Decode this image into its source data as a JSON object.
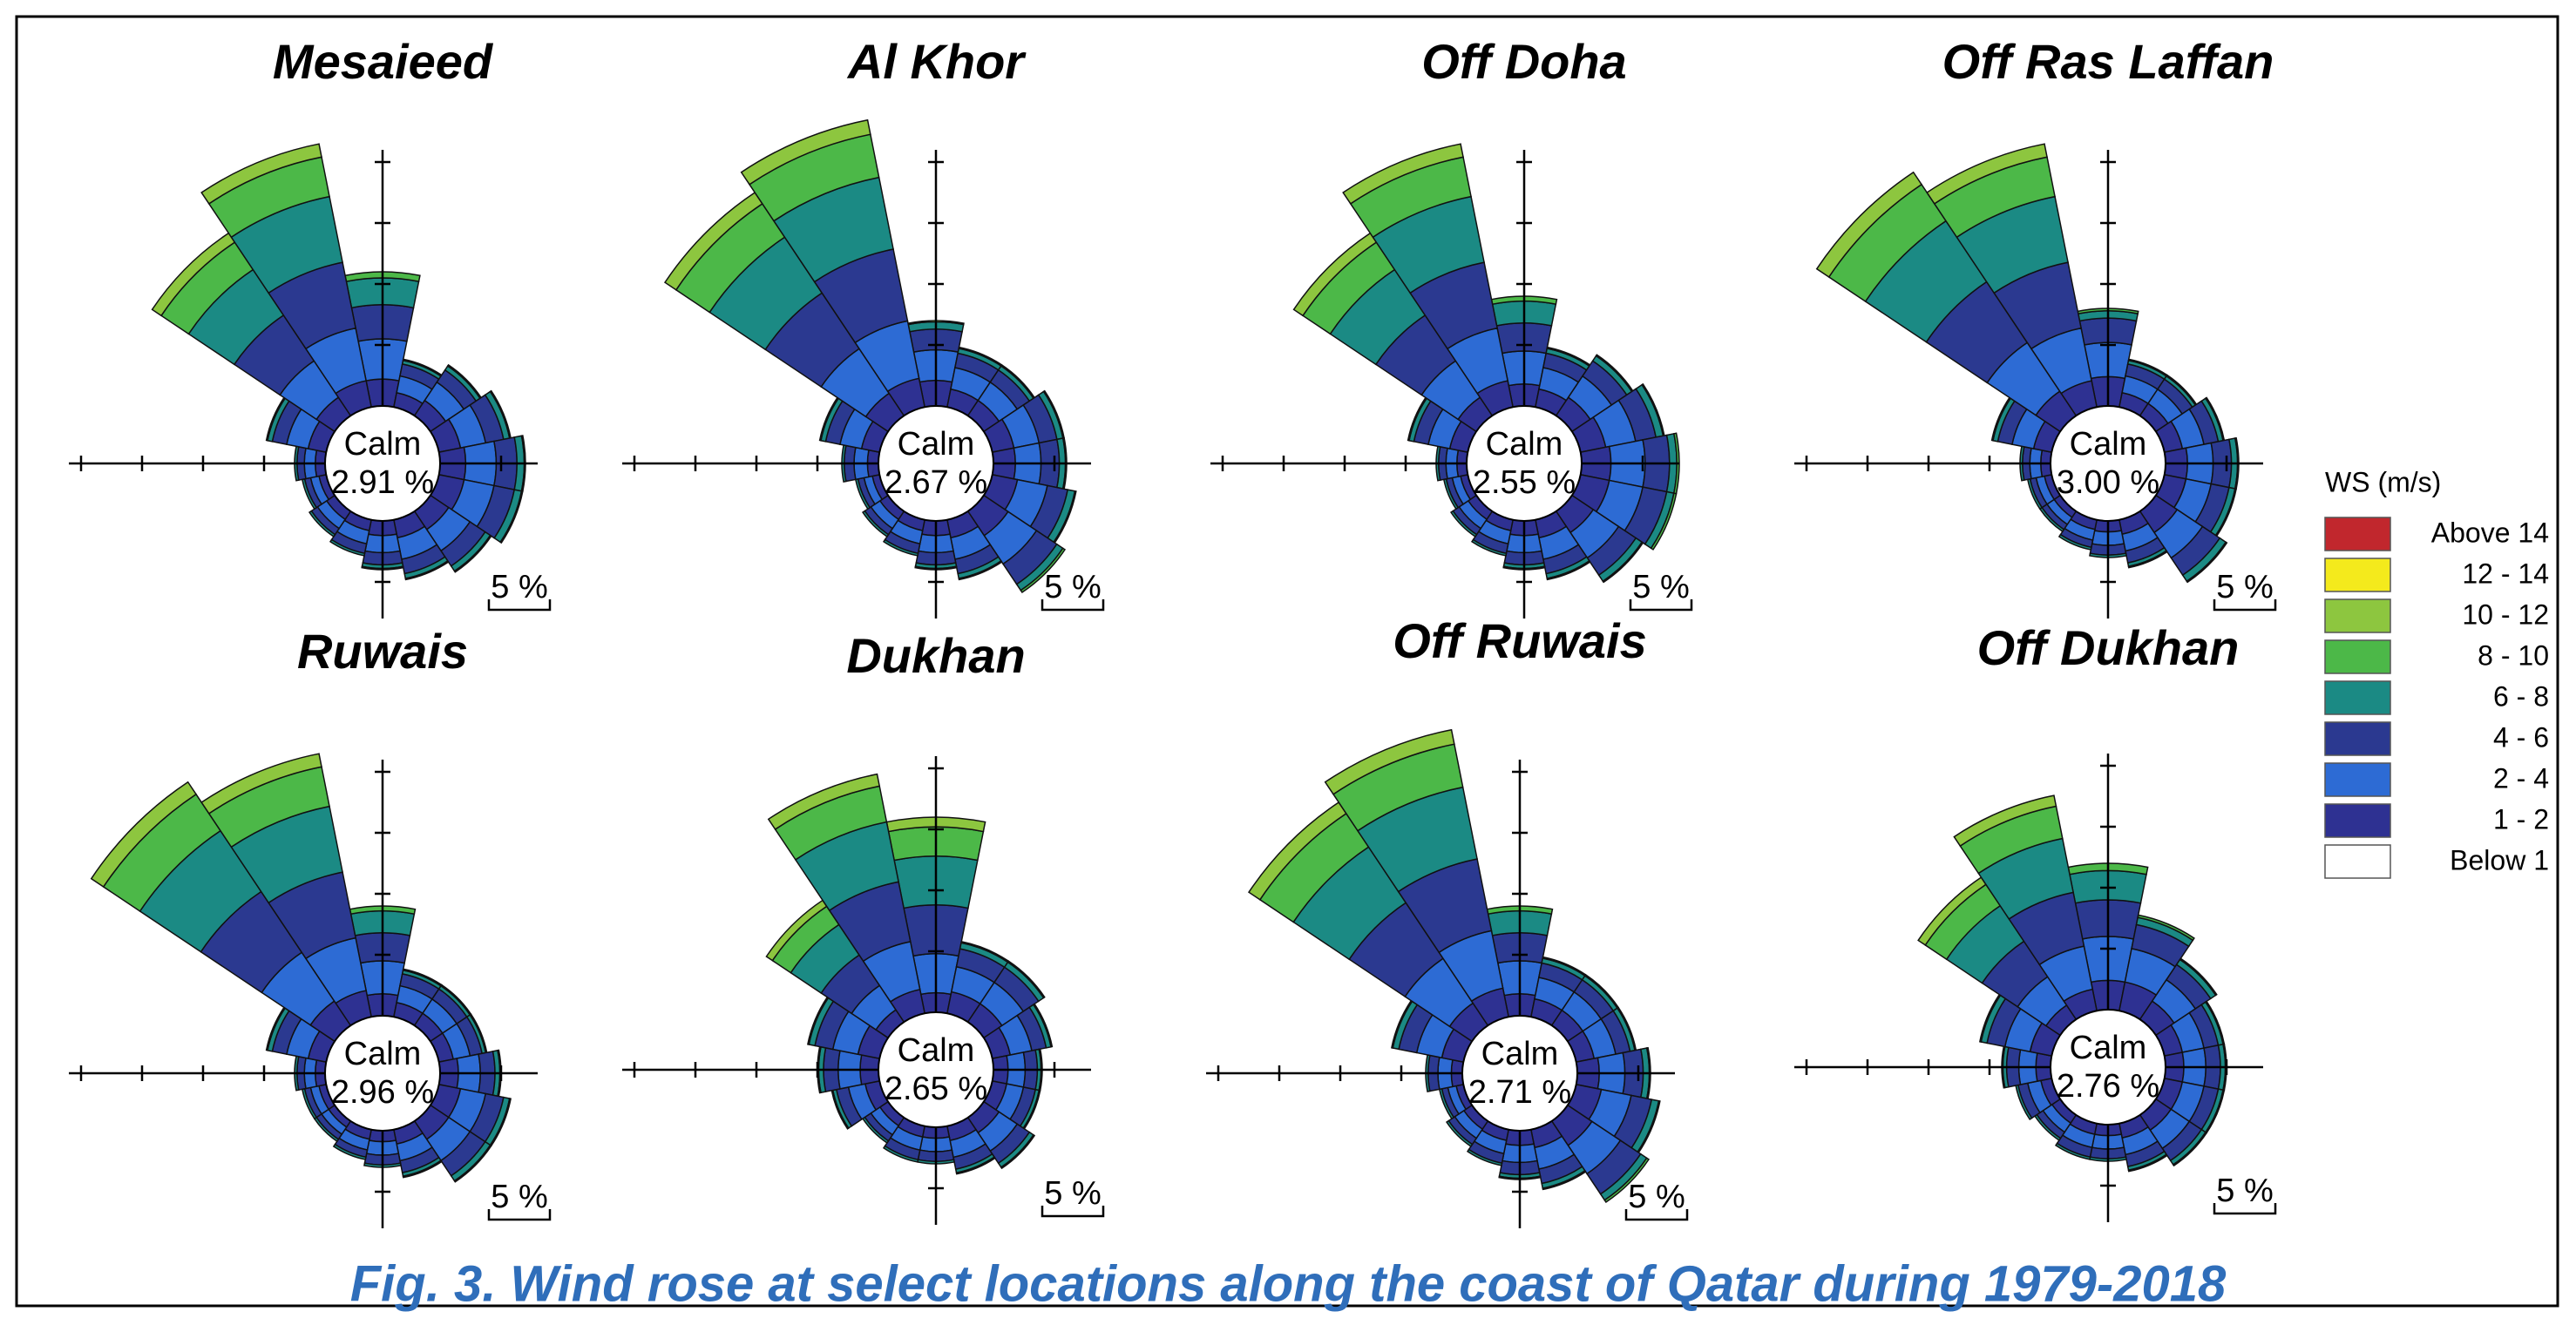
{
  "figure": {
    "caption": "Fig. 3.  Wind rose at select locations along the coast of Qatar during 1979-2018",
    "legend_title": "WS (m/s)",
    "speed_bins": [
      {
        "name": "Above 14",
        "color": "#c1272d"
      },
      {
        "name": "12 - 14",
        "color": "#f4ea1c"
      },
      {
        "name": "10 - 12",
        "color": "#8dc63f"
      },
      {
        "name": "8 - 10",
        "color": "#4cb848"
      },
      {
        "name": "6 - 8",
        "color": "#1b8a84"
      },
      {
        "name": "4 - 6",
        "color": "#2b3990"
      },
      {
        "name": "2 - 4",
        "color": "#2d6bd4"
      },
      {
        "name": "1 - 2",
        "color": "#2e3192"
      },
      {
        "name": "Below 1",
        "color": "#ffffff"
      }
    ]
  },
  "chart_data": [
    {
      "type": "windrose",
      "title": "Mesaieed",
      "calm_text": "Calm",
      "calm": {
        "value": 2.91,
        "label": "2.91 %"
      },
      "scale": {
        "value": 5,
        "label": "5 %"
      },
      "rticks": [
        5,
        10,
        15,
        20
      ],
      "rlim": 21,
      "values": [
        [
          2.2,
          3.3,
          2.8,
          2.2,
          0.5,
          0
        ],
        [
          1.2,
          1.4,
          1,
          0.3,
          0.1,
          0
        ],
        [
          1.5,
          1.8,
          1.2,
          0.4,
          0.1,
          0
        ],
        [
          1.8,
          2.1,
          1.5,
          0.5,
          0.1,
          0
        ],
        [
          2.1,
          2.5,
          1.7,
          0.6,
          0.1,
          0
        ],
        [
          2.1,
          2.5,
          1.7,
          0.6,
          0.1,
          0
        ],
        [
          1.8,
          2.1,
          1.5,
          0.5,
          0.1,
          0
        ],
        [
          1.5,
          1.8,
          1.2,
          0.4,
          0.1,
          0
        ],
        [
          1.2,
          1.4,
          1,
          0.3,
          0.1,
          0
        ],
        [
          0.9,
          1.1,
          0.8,
          0.2,
          0,
          0
        ],
        [
          0.8,
          0.9,
          0.6,
          0.2,
          0,
          0
        ],
        [
          0.6,
          0.7,
          0.5,
          0.2,
          0,
          0
        ],
        [
          0.8,
          0.9,
          0.6,
          0.2,
          0,
          0
        ],
        [
          1.5,
          1.8,
          1.2,
          0.4,
          0.1,
          0
        ],
        [
          1.8,
          3.6,
          4.5,
          4.5,
          2.7,
          0.9
        ],
        [
          2.2,
          4.4,
          5.5,
          5.5,
          3.3,
          1.1
        ]
      ]
    },
    {
      "type": "windrose",
      "title": "Al Khor",
      "calm_text": "Calm",
      "calm": {
        "value": 2.67,
        "label": "2.67 %"
      },
      "scale": {
        "value": 5,
        "label": "5 %"
      },
      "rticks": [
        5,
        10,
        15,
        20
      ],
      "rlim": 21,
      "values": [
        [
          2.1,
          2.5,
          1.7,
          0.6,
          0.1,
          0
        ],
        [
          1.5,
          1.8,
          1.2,
          0.4,
          0.1,
          0
        ],
        [
          1.5,
          1.8,
          1.2,
          0.4,
          0.1,
          0
        ],
        [
          1.8,
          2.1,
          1.5,
          0.5,
          0.1,
          0
        ],
        [
          1.8,
          2.1,
          1.5,
          0.5,
          0.1,
          0
        ],
        [
          2.1,
          2.5,
          1.7,
          0.6,
          0.1,
          0
        ],
        [
          2.4,
          2.8,
          2,
          0.6,
          0.2,
          0
        ],
        [
          1.5,
          1.8,
          1.2,
          0.4,
          0.1,
          0
        ],
        [
          1.2,
          1.4,
          1,
          0.3,
          0.1,
          0
        ],
        [
          0.9,
          1.1,
          0.8,
          0.2,
          0,
          0
        ],
        [
          0.8,
          0.9,
          0.6,
          0.2,
          0,
          0
        ],
        [
          0.6,
          0.7,
          0.5,
          0.2,
          0,
          0
        ],
        [
          0.9,
          1.1,
          0.8,
          0.2,
          0,
          0
        ],
        [
          1.5,
          1.8,
          1.2,
          0.4,
          0.1,
          0
        ],
        [
          2.2,
          4.4,
          5.5,
          5.5,
          3.3,
          1.1
        ],
        [
          2.4,
          4.8,
          6,
          6,
          3.6,
          1.2
        ]
      ]
    },
    {
      "type": "windrose",
      "title": "Off Doha",
      "calm_text": "Calm",
      "calm": {
        "value": 2.55,
        "label": "2.55 %"
      },
      "scale": {
        "value": 5,
        "label": "5 %"
      },
      "rticks": [
        5,
        10,
        15,
        20
      ],
      "rlim": 21,
      "values": [
        [
          1.8,
          2.7,
          2.3,
          1.8,
          0.4,
          0
        ],
        [
          1.5,
          1.8,
          1.2,
          0.4,
          0.1,
          0
        ],
        [
          1.8,
          2.1,
          1.5,
          0.5,
          0.1,
          0
        ],
        [
          2.1,
          2.5,
          1.7,
          0.6,
          0.1,
          0
        ],
        [
          2.4,
          2.8,
          2,
          0.6,
          0.2,
          0
        ],
        [
          2.4,
          2.8,
          2,
          0.6,
          0.2,
          0
        ],
        [
          2.1,
          2.5,
          1.7,
          0.6,
          0.1,
          0
        ],
        [
          1.5,
          1.8,
          1.2,
          0.4,
          0.1,
          0
        ],
        [
          1.2,
          1.4,
          1,
          0.3,
          0.1,
          0
        ],
        [
          0.9,
          1.1,
          0.8,
          0.2,
          0,
          0
        ],
        [
          0.8,
          0.9,
          0.6,
          0.2,
          0,
          0
        ],
        [
          0.6,
          0.7,
          0.5,
          0.2,
          0,
          0
        ],
        [
          0.8,
          0.9,
          0.6,
          0.2,
          0,
          0
        ],
        [
          1.5,
          1.8,
          1.2,
          0.4,
          0.1,
          0
        ],
        [
          1.8,
          3.6,
          4.5,
          4.5,
          2.7,
          0.9
        ],
        [
          2.2,
          4.4,
          5.5,
          5.5,
          3.3,
          1.1
        ]
      ]
    },
    {
      "type": "windrose",
      "title": "Off Ras Laffan",
      "calm_text": "Calm",
      "calm": {
        "value": 3.0,
        "label": "3.00 %"
      },
      "scale": {
        "value": 5,
        "label": "5 %"
      },
      "rticks": [
        5,
        10,
        15,
        20
      ],
      "rlim": 21,
      "values": [
        [
          2.4,
          2.8,
          2,
          0.6,
          0.2,
          0
        ],
        [
          1.2,
          1.4,
          1,
          0.3,
          0.1,
          0
        ],
        [
          1.2,
          1.4,
          1,
          0.3,
          0.1,
          0
        ],
        [
          1.5,
          1.8,
          1.2,
          0.4,
          0.1,
          0
        ],
        [
          1.8,
          2.1,
          1.5,
          0.5,
          0.1,
          0
        ],
        [
          1.8,
          2.1,
          1.5,
          0.5,
          0.1,
          0
        ],
        [
          2.1,
          2.5,
          1.7,
          0.6,
          0.1,
          0
        ],
        [
          1.2,
          1.4,
          1,
          0.3,
          0.1,
          0
        ],
        [
          0.9,
          1.1,
          0.8,
          0.2,
          0,
          0
        ],
        [
          0.8,
          0.9,
          0.6,
          0.2,
          0,
          0
        ],
        [
          0.6,
          0.7,
          0.5,
          0.2,
          0,
          0
        ],
        [
          0.6,
          0.7,
          0.5,
          0.2,
          0,
          0
        ],
        [
          0.8,
          0.9,
          0.6,
          0.2,
          0,
          0
        ],
        [
          1.5,
          1.8,
          1.2,
          0.4,
          0.1,
          0
        ],
        [
          2.4,
          4.8,
          6,
          6,
          3.6,
          1.2
        ],
        [
          2.2,
          4.4,
          5.5,
          5.5,
          3.3,
          1.1
        ]
      ]
    },
    {
      "type": "windrose",
      "title": "Ruwais",
      "calm_text": "Calm",
      "calm": {
        "value": 2.96,
        "label": "2.96 %"
      },
      "scale": {
        "value": 5,
        "label": "5 %"
      },
      "rticks": [
        5,
        10,
        15,
        20
      ],
      "rlim": 21,
      "values": [
        [
          1.8,
          2.7,
          2.3,
          1.8,
          0.4,
          0
        ],
        [
          1.2,
          1.4,
          1,
          0.3,
          0.1,
          0
        ],
        [
          1.2,
          1.4,
          1,
          0.3,
          0.1,
          0
        ],
        [
          1.2,
          1.4,
          1,
          0.3,
          0.1,
          0
        ],
        [
          1.5,
          1.8,
          1.2,
          0.4,
          0.1,
          0
        ],
        [
          1.8,
          2.1,
          1.5,
          0.5,
          0.1,
          0
        ],
        [
          1.8,
          2.1,
          1.5,
          0.5,
          0.1,
          0
        ],
        [
          1.2,
          1.4,
          1,
          0.3,
          0.1,
          0
        ],
        [
          0.9,
          1.1,
          0.8,
          0.2,
          0,
          0
        ],
        [
          0.8,
          0.9,
          0.6,
          0.2,
          0,
          0
        ],
        [
          0.6,
          0.7,
          0.5,
          0.2,
          0,
          0
        ],
        [
          0.6,
          0.7,
          0.5,
          0.2,
          0,
          0
        ],
        [
          0.8,
          0.9,
          0.6,
          0.2,
          0,
          0
        ],
        [
          1.5,
          1.8,
          1.2,
          0.4,
          0.1,
          0
        ],
        [
          2.4,
          4.8,
          6,
          6,
          3.6,
          1.2
        ],
        [
          2.2,
          4.4,
          5.5,
          5.5,
          3.3,
          1.1
        ]
      ]
    },
    {
      "type": "windrose",
      "title": "Dukhan",
      "calm_text": "Calm",
      "calm": {
        "value": 2.65,
        "label": "2.65 %"
      },
      "scale": {
        "value": 5,
        "label": "5 %"
      },
      "rticks": [
        5,
        10,
        15,
        20
      ],
      "rlim": 21,
      "values": [
        [
          1.6,
          3.2,
          4,
          4,
          2.4,
          0.8
        ],
        [
          1.8,
          2.1,
          1.5,
          0.5,
          0.1,
          0
        ],
        [
          1.8,
          2.1,
          1.5,
          0.5,
          0.1,
          0
        ],
        [
          1.5,
          1.8,
          1.2,
          0.4,
          0.1,
          0
        ],
        [
          1.2,
          1.4,
          1,
          0.3,
          0.1,
          0
        ],
        [
          1.2,
          1.4,
          1,
          0.3,
          0.1,
          0
        ],
        [
          1.5,
          1.8,
          1.2,
          0.4,
          0.1,
          0
        ],
        [
          1.2,
          1.4,
          1,
          0.3,
          0.1,
          0
        ],
        [
          0.9,
          1.1,
          0.8,
          0.2,
          0,
          0
        ],
        [
          0.9,
          1.1,
          0.8,
          0.2,
          0,
          0
        ],
        [
          0.8,
          0.9,
          0.6,
          0.2,
          0,
          0
        ],
        [
          1.2,
          1.4,
          1,
          0.3,
          0.1,
          0
        ],
        [
          1.5,
          1.8,
          1.2,
          0.4,
          0.1,
          0
        ],
        [
          1.8,
          2.1,
          1.5,
          0.5,
          0.1,
          0
        ],
        [
          1.2,
          2.4,
          3,
          3,
          1.8,
          0.6
        ],
        [
          2,
          4,
          5,
          5,
          3,
          1
        ]
      ]
    },
    {
      "type": "windrose",
      "title": "Off Ruwais",
      "calm_text": "Calm",
      "calm": {
        "value": 2.71,
        "label": "2.71 %"
      },
      "scale": {
        "value": 5,
        "label": "5 %"
      },
      "rticks": [
        5,
        10,
        15,
        20
      ],
      "rlim": 21,
      "values": [
        [
          1.8,
          2.7,
          2.3,
          1.8,
          0.4,
          0
        ],
        [
          1.5,
          1.8,
          1.2,
          0.4,
          0.1,
          0
        ],
        [
          1.5,
          1.8,
          1.2,
          0.4,
          0.1,
          0
        ],
        [
          1.5,
          1.8,
          1.2,
          0.4,
          0.1,
          0
        ],
        [
          1.8,
          2.1,
          1.5,
          0.5,
          0.1,
          0
        ],
        [
          2.1,
          2.5,
          1.7,
          0.6,
          0.1,
          0
        ],
        [
          2.4,
          2.8,
          2,
          0.6,
          0.2,
          0
        ],
        [
          1.5,
          1.8,
          1.2,
          0.4,
          0.1,
          0
        ],
        [
          1.2,
          1.4,
          1,
          0.3,
          0.1,
          0
        ],
        [
          0.9,
          1.1,
          0.8,
          0.2,
          0,
          0
        ],
        [
          0.8,
          0.9,
          0.6,
          0.2,
          0,
          0
        ],
        [
          0.6,
          0.7,
          0.5,
          0.2,
          0,
          0
        ],
        [
          0.9,
          1.1,
          0.8,
          0.2,
          0,
          0
        ],
        [
          1.8,
          2.1,
          1.5,
          0.5,
          0.1,
          0
        ],
        [
          2.2,
          4.4,
          5.5,
          5.5,
          3.3,
          1.1
        ],
        [
          2.4,
          4.8,
          6,
          6,
          3.6,
          1.2
        ]
      ]
    },
    {
      "type": "windrose",
      "title": "Off Dukhan",
      "calm_text": "Calm",
      "calm": {
        "value": 2.76,
        "label": "2.76 %"
      },
      "scale": {
        "value": 5,
        "label": "5 %"
      },
      "rticks": [
        5,
        10,
        15,
        20
      ],
      "rlim": 21,
      "values": [
        [
          2.4,
          3.6,
          3,
          2.4,
          0.6,
          0
        ],
        [
          2.4,
          2.8,
          2,
          0.6,
          0.2,
          0
        ],
        [
          1.8,
          2.1,
          1.5,
          0.5,
          0.1,
          0
        ],
        [
          1.5,
          1.8,
          1.2,
          0.4,
          0.1,
          0
        ],
        [
          1.5,
          1.8,
          1.2,
          0.4,
          0.1,
          0
        ],
        [
          1.5,
          1.8,
          1.2,
          0.4,
          0.1,
          0
        ],
        [
          1.5,
          1.8,
          1.2,
          0.4,
          0.1,
          0
        ],
        [
          1.2,
          1.4,
          1,
          0.3,
          0.1,
          0
        ],
        [
          0.9,
          1.1,
          0.8,
          0.2,
          0,
          0
        ],
        [
          0.9,
          1.1,
          0.8,
          0.2,
          0,
          0
        ],
        [
          0.8,
          0.9,
          0.6,
          0.2,
          0,
          0
        ],
        [
          0.9,
          1.1,
          0.8,
          0.2,
          0,
          0
        ],
        [
          1.2,
          1.4,
          1,
          0.3,
          0.1,
          0
        ],
        [
          1.8,
          2.1,
          1.5,
          0.5,
          0.1,
          0
        ],
        [
          1.4,
          2.8,
          3.5,
          3.5,
          2.1,
          0.7
        ],
        [
          1.8,
          3.6,
          4.5,
          4.5,
          2.7,
          0.9
        ]
      ]
    }
  ]
}
